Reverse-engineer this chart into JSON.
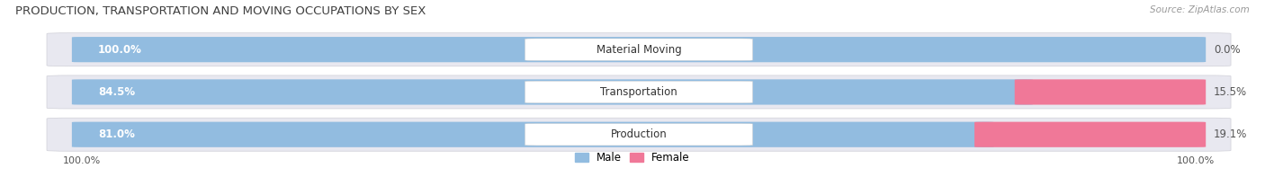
{
  "title": "PRODUCTION, TRANSPORTATION AND MOVING OCCUPATIONS BY SEX",
  "source": "Source: ZipAtlas.com",
  "categories": [
    "Material Moving",
    "Transportation",
    "Production"
  ],
  "male_pct": [
    100.0,
    84.5,
    81.0
  ],
  "female_pct": [
    0.0,
    15.5,
    19.1
  ],
  "male_color": "#92bce0",
  "female_color": "#f07898",
  "bar_bg_color": "#e8e8f0",
  "bar_row_bg": "#f0f0f5",
  "figsize": [
    14.06,
    1.97
  ],
  "dpi": 100,
  "title_fontsize": 9.5,
  "cat_label_fontsize": 8.5,
  "pct_label_fontsize": 8.5,
  "axis_label_fontsize": 8,
  "legend_fontsize": 8.5
}
